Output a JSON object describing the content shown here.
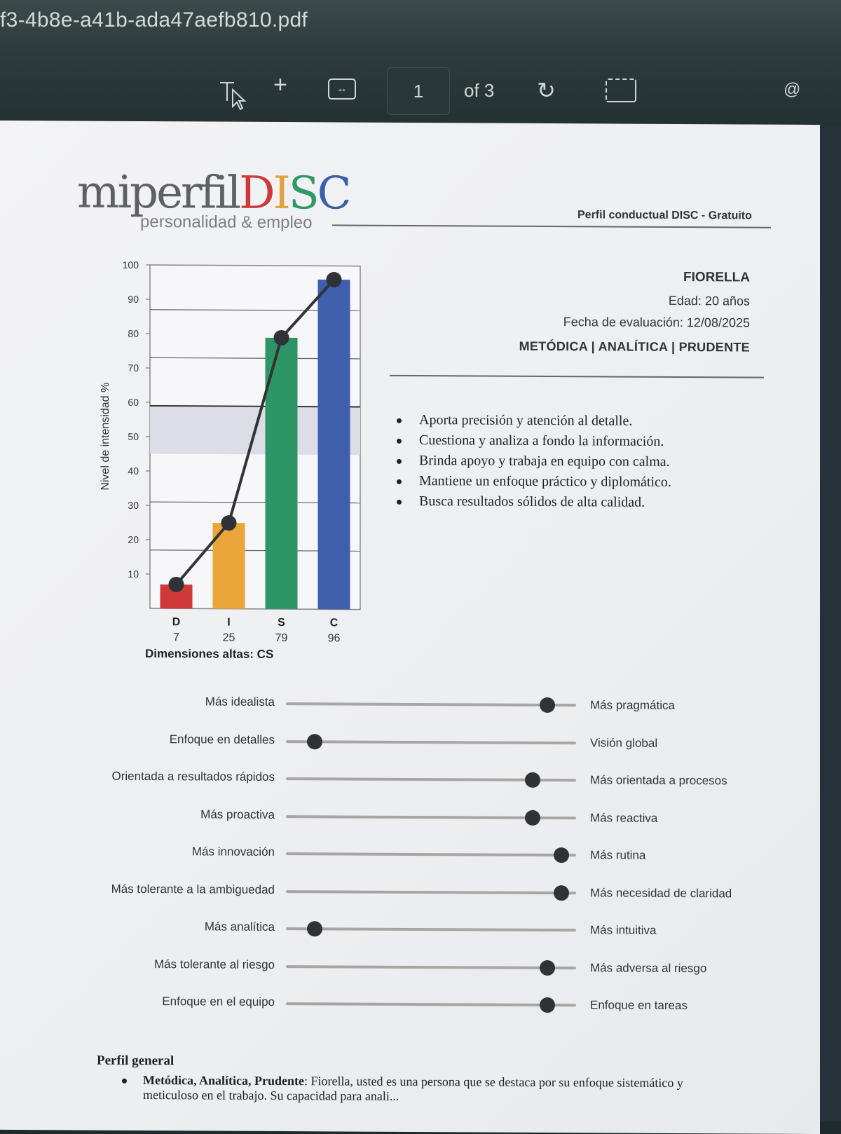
{
  "viewer": {
    "file_title": "f3-4b8e-a41b-ada47aefb810.pdf",
    "current_page": "1",
    "page_of": "of 3"
  },
  "logo": {
    "main_prefix": "miperfil",
    "d": "D",
    "i": "I",
    "s": "S",
    "c": "C",
    "subtitle": "personalidad & empleo"
  },
  "header": {
    "profile_type": "Perfil conductual DISC - Gratuito"
  },
  "person": {
    "name": "FIORELLA",
    "age": "Edad: 20 años",
    "date": "Fecha de evaluación: 12/08/2025",
    "traits": "METÓDICA |  ANALÍTICA |  PRUDENTE"
  },
  "chart_data": {
    "type": "bar",
    "categories": [
      "D",
      "I",
      "S",
      "C"
    ],
    "values": [
      7,
      25,
      79,
      96
    ],
    "value_labels": [
      "7",
      "25",
      "79",
      "96"
    ],
    "colors": [
      "#d0393a",
      "#eaa63a",
      "#2e9666",
      "#3e5fac"
    ],
    "ylabel": "Nivel de intensidad %",
    "ylim": [
      0,
      100
    ],
    "yticks": [
      10,
      20,
      30,
      40,
      50,
      60,
      70,
      80,
      90,
      100
    ],
    "line_overlay": true,
    "caption": "Dimensiones altas: CS"
  },
  "bullets": [
    "Aporta precisión y atención al detalle.",
    "Cuestiona y analiza a fondo la información.",
    "Brinda apoyo y trabaja en equipo con calma.",
    "Mantiene un enfoque práctico y diplomático.",
    "Busca resultados sólidos de alta calidad."
  ],
  "sliders": [
    {
      "left": "Más idealista",
      "right": "Más pragmática",
      "value": 0.9
    },
    {
      "left": "Enfoque en detalles",
      "right": "Visión global",
      "value": 0.1
    },
    {
      "left": "Orientada a resultados rápidos",
      "right": "Más orientada a procesos",
      "value": 0.85
    },
    {
      "left": "Más proactiva",
      "right": "Más reactiva",
      "value": 0.85
    },
    {
      "left": "Más innovación",
      "right": "Más rutina",
      "value": 0.95
    },
    {
      "left": "Más tolerante a la ambiguedad",
      "right": "Más necesidad de claridad",
      "value": 0.95
    },
    {
      "left": "Más analítica",
      "right": "Más intuitiva",
      "value": 0.1
    },
    {
      "left": "Más tolerante al riesgo",
      "right": "Más adversa al riesgo",
      "value": 0.9
    },
    {
      "left": "Enfoque en el equipo",
      "right": "Enfoque en tareas",
      "value": 0.9
    }
  ],
  "general": {
    "title": "Perfil general",
    "lead": "Metódica, Analítica, Prudente",
    "text": ": Fiorella, usted es una persona que se destaca por su enfoque sistemático y meticuloso en el trabajo. Su capacidad para anali..."
  }
}
